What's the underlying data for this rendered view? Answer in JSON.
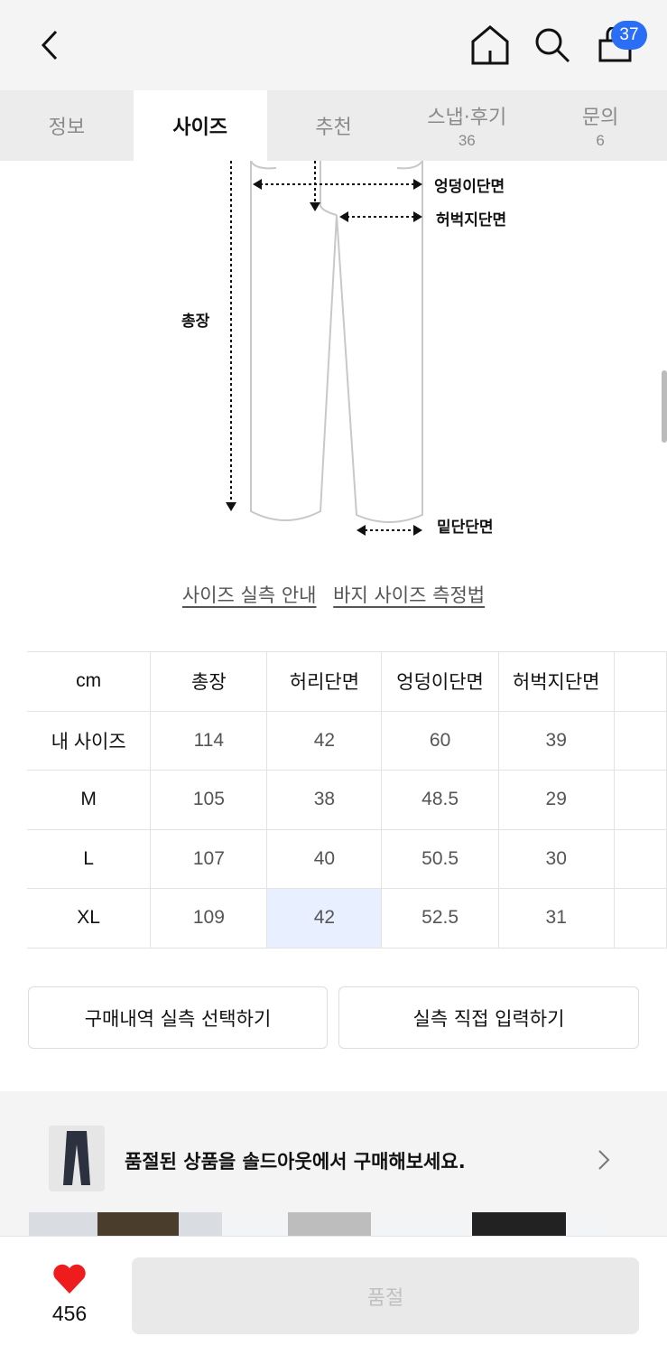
{
  "header": {
    "cart_count": "37",
    "icons": [
      "back-icon",
      "home-icon",
      "search-icon",
      "shopping-bag-icon"
    ]
  },
  "tabs": [
    {
      "label": "정보",
      "count": ""
    },
    {
      "label": "사이즈",
      "count": ""
    },
    {
      "label": "추천",
      "count": ""
    },
    {
      "label": "스냅·후기",
      "count": "36"
    },
    {
      "label": "문의",
      "count": "6"
    }
  ],
  "diagram": {
    "labels": {
      "hip": "엉덩이단면",
      "thigh": "허벅지단면",
      "length": "총장",
      "hem": "밑단단면"
    }
  },
  "links": {
    "guide": "사이즈 실측 안내",
    "howto": "바지 사이즈 측정법"
  },
  "size_table": {
    "headers": [
      "cm",
      "총장",
      "허리단면",
      "엉덩이단면",
      "허벅지단면",
      ""
    ],
    "rows": [
      [
        "내 사이즈",
        "114",
        "42",
        "60",
        "39",
        ""
      ],
      [
        "M",
        "105",
        "38",
        "48.5",
        "29",
        ""
      ],
      [
        "L",
        "107",
        "40",
        "50.5",
        "30",
        ""
      ],
      [
        "XL",
        "109",
        "42",
        "52.5",
        "31",
        ""
      ]
    ],
    "highlight_color": "#e8efff"
  },
  "buttons": {
    "history": "구매내역 실측 선택하기",
    "manual": "실측 직접 입력하기"
  },
  "banner": {
    "text": "품절된 상품을 솔드아웃에서 구매해보세요."
  },
  "bottom": {
    "likes": "456",
    "soldout": "품절",
    "heart_color": "#ee1c1c"
  }
}
